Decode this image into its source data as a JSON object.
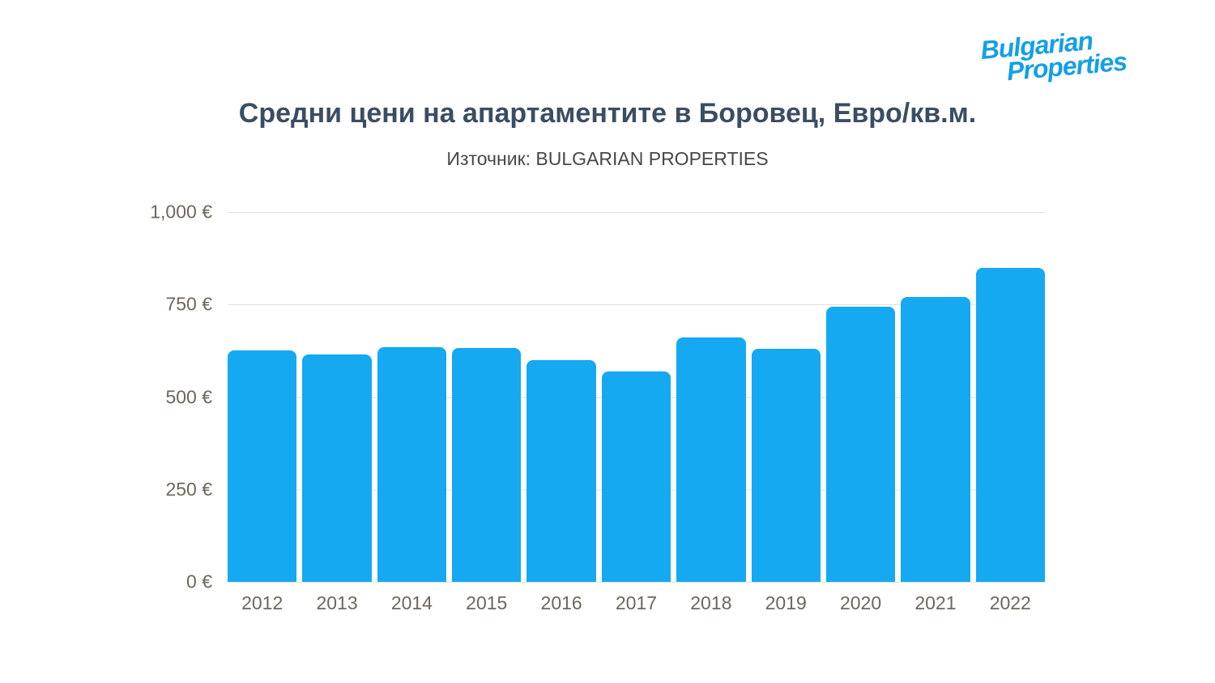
{
  "logo": {
    "line1": "Bulgarian",
    "line2": "Properties"
  },
  "chart_data": {
    "type": "bar",
    "title": "Средни цени на апартаментите в Боровец, Евро/кв.м.",
    "subtitle": "Източник: BULGARIAN PROPERTIES",
    "categories": [
      "2012",
      "2013",
      "2014",
      "2015",
      "2016",
      "2017",
      "2018",
      "2019",
      "2020",
      "2021",
      "2022"
    ],
    "values": [
      625,
      615,
      635,
      632,
      600,
      570,
      660,
      630,
      745,
      770,
      850
    ],
    "ylim": [
      0,
      1000
    ],
    "yticks": [
      {
        "value": 1000,
        "label": "1,000 €"
      },
      {
        "value": 750,
        "label": "750 €"
      },
      {
        "value": 500,
        "label": "500 €"
      },
      {
        "value": 250,
        "label": "250 €"
      },
      {
        "value": 0,
        "label": "0 €"
      }
    ],
    "grid": true,
    "legend": false,
    "colors": {
      "bar": "#15a9f1",
      "logo": "#149fe6",
      "title": "#3b4d63",
      "subtitle": "#474747",
      "axis_label": "#6d675c",
      "gridline": "#e0e0e0"
    }
  }
}
